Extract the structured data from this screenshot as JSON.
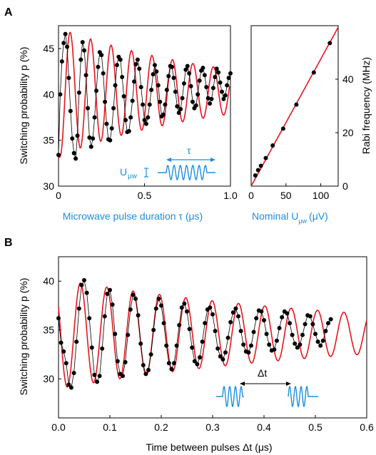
{
  "panel_labels": {
    "a": "A",
    "b": "B"
  },
  "colors": {
    "fit": "#e8141c",
    "data": "#000000",
    "blue": "#1a8fe0",
    "axis": "#000000"
  },
  "chart_data": [
    {
      "id": "A-left",
      "type": "line",
      "ylabel": "Switching probability p (%)",
      "xlabel": "Microwave pulse duration τ (μs)",
      "xlim": [
        0,
        1.0
      ],
      "ylim": [
        30,
        47.5
      ],
      "xticks": [
        0,
        0.5,
        1.0
      ],
      "xtick_labels": [
        "0",
        "0.5",
        "1.0"
      ],
      "yticks": [
        30,
        35,
        40,
        45
      ],
      "ytick_labels": [
        "30",
        "35",
        "40",
        "45"
      ],
      "fit": {
        "offset": 40.3,
        "amp": 7.0,
        "decay_us": 0.95,
        "freq_mhz": 8.4,
        "phase": -2.0,
        "fit_start": 33.0
      },
      "inset": {
        "tau_label": "τ",
        "u_label": "U",
        "u_sub": "μw"
      },
      "series": [
        {
          "x": [
            0.0,
            0.01,
            0.02,
            0.03,
            0.04,
            0.05,
            0.06,
            0.07,
            0.08,
            0.09,
            0.1,
            0.11,
            0.12,
            0.13,
            0.14,
            0.15,
            0.16,
            0.17,
            0.18,
            0.19,
            0.2,
            0.21,
            0.22,
            0.23,
            0.24,
            0.25,
            0.26,
            0.27,
            0.28,
            0.29,
            0.3,
            0.31,
            0.32,
            0.33,
            0.34,
            0.35,
            0.36,
            0.37,
            0.38,
            0.39,
            0.4,
            0.41,
            0.42,
            0.43,
            0.44,
            0.45,
            0.46,
            0.47,
            0.48,
            0.49,
            0.5,
            0.51,
            0.52,
            0.53,
            0.54,
            0.55,
            0.56,
            0.57,
            0.58,
            0.59,
            0.6,
            0.61,
            0.62,
            0.63,
            0.64,
            0.65,
            0.66,
            0.67,
            0.68,
            0.69,
            0.7,
            0.71,
            0.72,
            0.73,
            0.74,
            0.75,
            0.76,
            0.77,
            0.78,
            0.79,
            0.8,
            0.81,
            0.82,
            0.83,
            0.84,
            0.85,
            0.86,
            0.87,
            0.88,
            0.89,
            0.9,
            0.91,
            0.92,
            0.93,
            0.94,
            0.95,
            0.96,
            0.97,
            0.98,
            0.99,
            1.0
          ],
          "y": [
            33.4,
            40.0,
            43.6,
            45.6,
            46.6,
            45.2,
            41.8,
            38.2,
            35.2,
            33.6,
            33.0,
            35.5,
            40.2,
            43.8,
            45.7,
            44.8,
            42.1,
            38.5,
            35.3,
            34.3,
            35.2,
            37.5,
            40.4,
            43.0,
            44.6,
            44.3,
            42.3,
            39.2,
            36.8,
            35.1,
            35.0,
            36.3,
            38.5,
            41.0,
            43.2,
            44.1,
            43.8,
            41.9,
            39.8,
            37.2,
            35.9,
            36.0,
            37.5,
            39.3,
            41.4,
            43.3,
            43.8,
            42.8,
            40.8,
            38.9,
            37.2,
            36.8,
            37.5,
            38.9,
            40.5,
            42.2,
            43.2,
            42.5,
            41.0,
            39.2,
            37.6,
            37.8,
            38.9,
            40.5,
            42.0,
            43.1,
            43.0,
            41.8,
            40.3,
            38.7,
            38.0,
            38.4,
            39.6,
            41.2,
            42.7,
            43.1,
            42.3,
            40.9,
            39.2,
            38.5,
            38.8,
            40.0,
            41.5,
            42.6,
            42.9,
            42.1,
            40.8,
            39.6,
            39.0,
            39.5,
            40.7,
            41.9,
            42.8,
            42.4,
            41.3,
            40.3,
            39.5,
            39.9,
            41.0,
            41.8,
            42.3
          ]
        }
      ]
    },
    {
      "id": "A-right",
      "type": "scatter",
      "xlabel": "Nominal U",
      "xlabel_sub": "μw",
      "xlabel_unit": "(μV)",
      "ylabel": "Rabi frequency (MHz)",
      "xlim": [
        0,
        125
      ],
      "ylim": [
        0,
        60
      ],
      "xticks": [
        0,
        50,
        100
      ],
      "yticks": [
        0,
        20,
        40
      ],
      "ytick_labels": [
        "0",
        "20",
        "40"
      ],
      "fit_line": {
        "x": [
          0,
          125
        ],
        "y": [
          0,
          59.4
        ]
      },
      "series": [
        {
          "x": [
            6,
            10,
            14,
            21,
            31,
            46,
            65,
            90,
            113
          ],
          "y": [
            4.0,
            6.0,
            7.6,
            10.5,
            15.2,
            21.5,
            30.5,
            42.5,
            53.5
          ]
        }
      ]
    },
    {
      "id": "B",
      "type": "line",
      "ylabel": "Switching probability p (%)",
      "xlabel": "Time between pulses Δt (μs)",
      "xlim": [
        0,
        0.6
      ],
      "ylim": [
        26,
        42.5
      ],
      "xticks": [
        0.0,
        0.1,
        0.2,
        0.3,
        0.4,
        0.5,
        0.6
      ],
      "xtick_labels": [
        "0.0",
        "0.1",
        "0.2",
        "0.3",
        "0.4",
        "0.5",
        "0.6"
      ],
      "yticks": [
        30,
        35,
        40
      ],
      "ytick_labels": [
        "30",
        "35",
        "40"
      ],
      "fit": {
        "offset": 34.6,
        "amp": 5.6,
        "decay_us": 0.6,
        "freq_mhz": 19.5,
        "phase": 1.05
      },
      "inset": {
        "dt_label": "Δt"
      },
      "series": [
        {
          "x": [
            0.0,
            0.005,
            0.01,
            0.015,
            0.02,
            0.025,
            0.03,
            0.035,
            0.04,
            0.045,
            0.05,
            0.055,
            0.06,
            0.065,
            0.07,
            0.075,
            0.08,
            0.085,
            0.09,
            0.095,
            0.1,
            0.105,
            0.11,
            0.115,
            0.12,
            0.125,
            0.13,
            0.135,
            0.14,
            0.145,
            0.15,
            0.155,
            0.16,
            0.165,
            0.17,
            0.175,
            0.18,
            0.185,
            0.19,
            0.195,
            0.2,
            0.205,
            0.21,
            0.215,
            0.22,
            0.225,
            0.23,
            0.235,
            0.24,
            0.245,
            0.25,
            0.255,
            0.26,
            0.265,
            0.27,
            0.275,
            0.28,
            0.285,
            0.29,
            0.295,
            0.3,
            0.305,
            0.31,
            0.315,
            0.32,
            0.325,
            0.33,
            0.335,
            0.34,
            0.345,
            0.35,
            0.355,
            0.36,
            0.365,
            0.37,
            0.375,
            0.38,
            0.385,
            0.39,
            0.395,
            0.4,
            0.405,
            0.41,
            0.415,
            0.42,
            0.425,
            0.43,
            0.435,
            0.44,
            0.445,
            0.45,
            0.455,
            0.46,
            0.465,
            0.47,
            0.475,
            0.48,
            0.485,
            0.49,
            0.495,
            0.5,
            0.505,
            0.51,
            0.515,
            0.52,
            0.525,
            0.53
          ],
          "y": [
            36.2,
            33.7,
            32.8,
            31.6,
            29.4,
            29.1,
            30.6,
            33.8,
            37.2,
            39.6,
            40.1,
            38.8,
            36.2,
            33.2,
            30.4,
            29.7,
            30.3,
            33.1,
            36.4,
            38.7,
            39.1,
            37.6,
            34.6,
            31.8,
            30.5,
            30.3,
            31.7,
            34.5,
            37.1,
            38.6,
            38.2,
            36.5,
            33.6,
            31.4,
            30.5,
            30.9,
            32.5,
            35.0,
            37.2,
            38.2,
            37.5,
            35.7,
            33.4,
            31.6,
            31.0,
            31.6,
            33.4,
            35.5,
            37.3,
            37.7,
            36.9,
            35.1,
            33.2,
            31.8,
            31.5,
            32.2,
            33.8,
            35.7,
            37.1,
            37.3,
            36.6,
            34.9,
            33.1,
            32.3,
            32.0,
            32.7,
            34.2,
            35.8,
            36.8,
            37.2,
            36.4,
            34.9,
            33.5,
            32.8,
            32.7,
            33.4,
            34.8,
            36.2,
            37.0,
            36.9,
            36.0,
            34.6,
            33.5,
            32.9,
            33.0,
            33.9,
            35.2,
            36.3,
            36.9,
            36.7,
            35.7,
            34.5,
            33.6,
            33.2,
            33.5,
            34.5,
            35.6,
            36.5,
            36.4,
            35.6,
            34.6,
            33.8,
            33.4,
            33.9,
            34.9,
            35.7,
            36.1
          ]
        }
      ]
    }
  ]
}
